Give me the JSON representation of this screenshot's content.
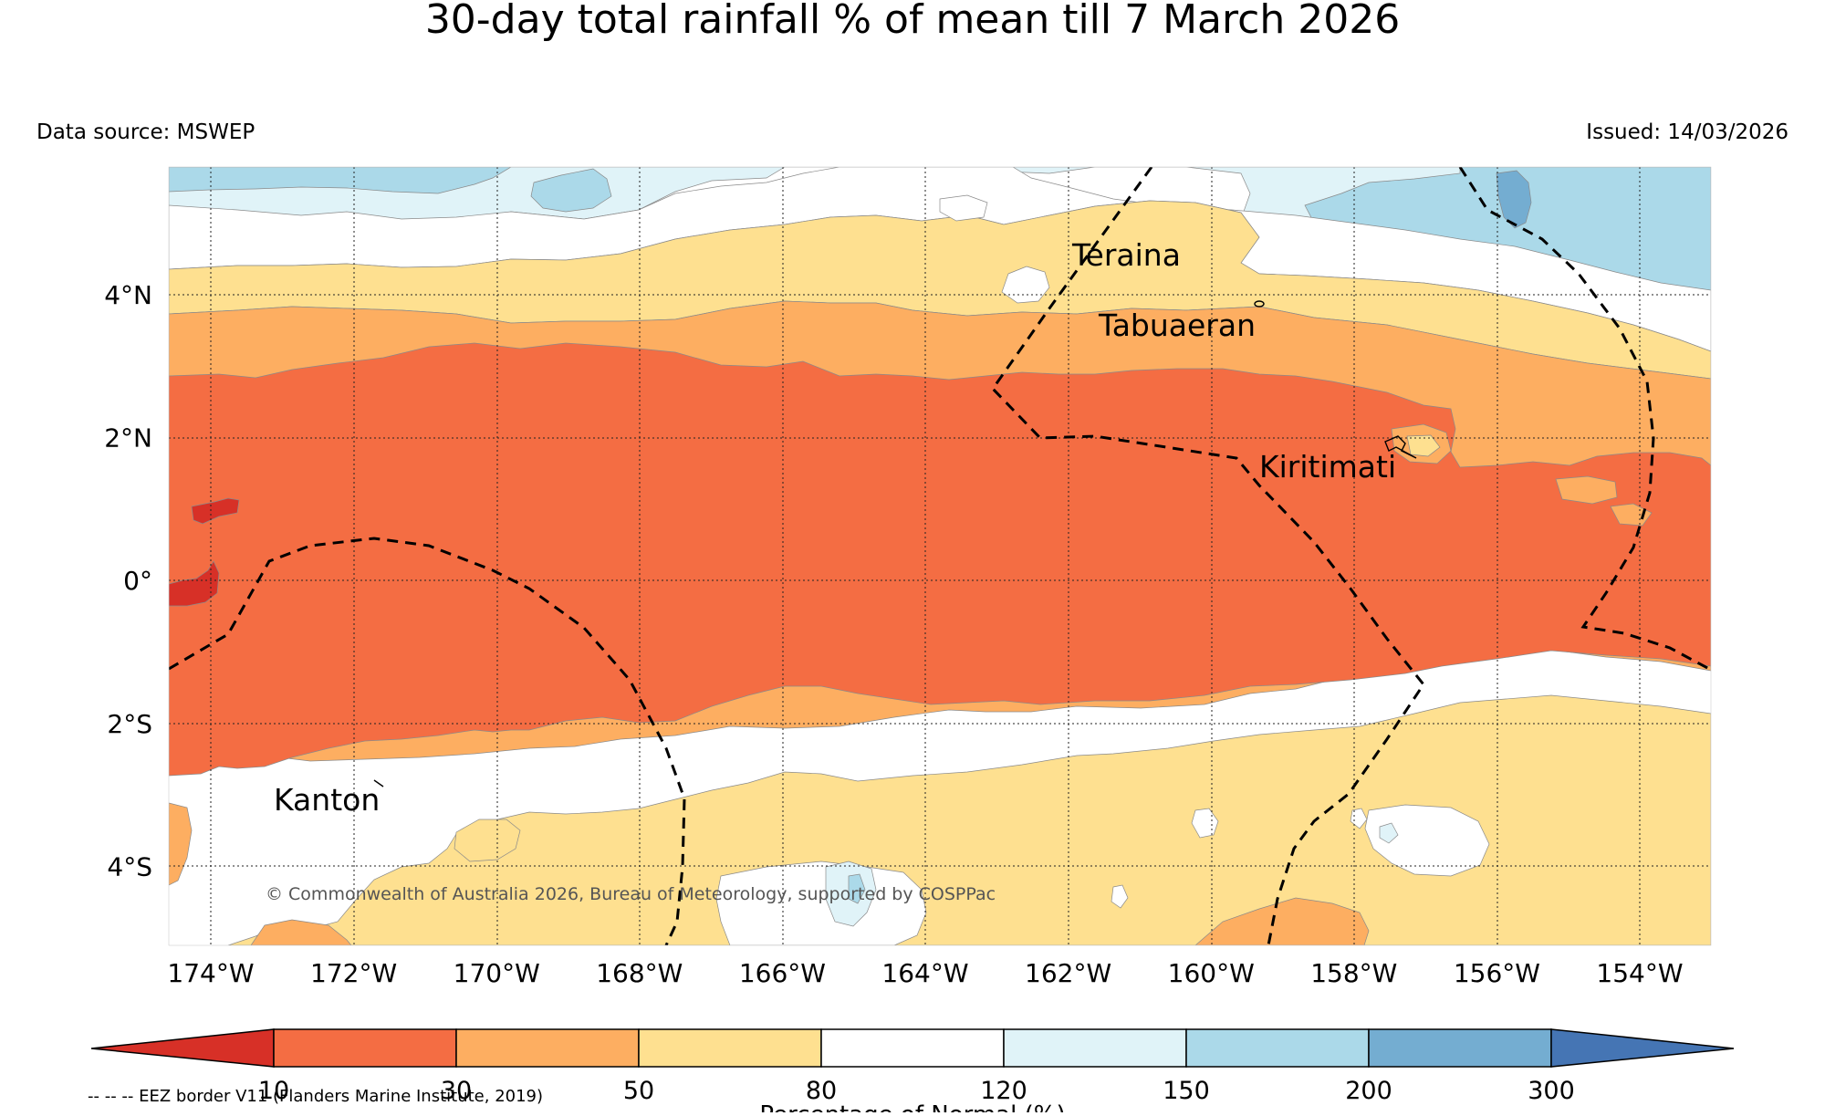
{
  "title": "30-day total rainfall % of mean till 7 March 2026",
  "data_source": "Data source: MSWEP",
  "issued": "Issued: 14/03/2026",
  "copyright": "© Commonwealth of Australia 2026, Bureau of Meteorology, supported by COSPPac",
  "eez_note": "-- -- -- EEZ border V11 (Flanders Marine Institute, 2019)",
  "axes": {
    "lon_labels": [
      "174°W",
      "172°W",
      "170°W",
      "168°W",
      "166°W",
      "164°W",
      "162°W",
      "160°W",
      "158°W",
      "156°W",
      "154°W"
    ],
    "lat_labels": [
      "4°N",
      "2°N",
      "0°",
      "2°S",
      "4°S"
    ]
  },
  "places": [
    {
      "name": "Teraina"
    },
    {
      "name": "Tabuaeran"
    },
    {
      "name": "Kiritimati"
    },
    {
      "name": "Kanton"
    }
  ],
  "colorbar": {
    "label": "Percentage of Normal (%)",
    "ticks": [
      "10",
      "30",
      "50",
      "80",
      "120",
      "150",
      "200",
      "300"
    ],
    "colors": {
      "lt10": "#d73027",
      "b10_30": "#f46d43",
      "b30_50": "#fdae61",
      "b50_80": "#fee090",
      "b80_120": "#ffffff",
      "b120_150": "#e0f3f8",
      "b150_200": "#abd9e9",
      "b200_300": "#74add1",
      "gt300": "#4575b4"
    }
  }
}
